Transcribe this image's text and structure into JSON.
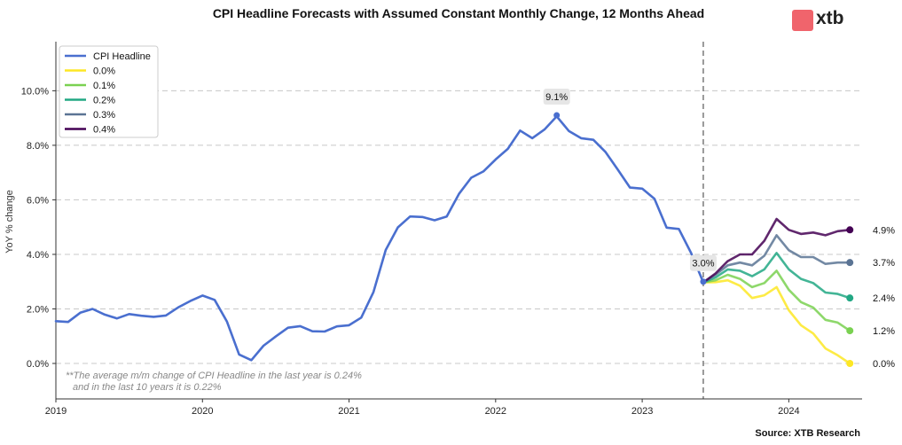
{
  "brand": {
    "logo_text": "xtb",
    "logo_color": "#f0646c"
  },
  "source": "Source: XTB Research",
  "note_lines": [
    "**The average m/m change of CPI Headline in the last year is 0.24%",
    "and in the last 10 years it is 0.22%"
  ],
  "chart_data": {
    "type": "line",
    "title": "CPI Headline Forecasts with Assumed Constant Monthly Change, 12 Months Ahead",
    "xlabel": "",
    "ylabel": "YoY % change",
    "x_range": [
      "2019-01",
      "2024-07"
    ],
    "ylim": [
      -1.3,
      11.8
    ],
    "y_ticks": [
      0,
      2,
      4,
      6,
      8,
      10
    ],
    "y_tick_labels": [
      "0.0%",
      "2.0%",
      "4.0%",
      "6.0%",
      "8.0%",
      "10.0%"
    ],
    "x_ticks": [
      "2019-01",
      "2020-01",
      "2021-01",
      "2022-01",
      "2023-01",
      "2024-01"
    ],
    "x_tick_labels": [
      "2019",
      "2020",
      "2021",
      "2022",
      "2023",
      "2024"
    ],
    "grid": "horizontal dashed",
    "legend_position": "top-left",
    "vline_at": "2023-06",
    "annotations": [
      {
        "x": "2022-06",
        "y": 9.1,
        "label": "9.1%"
      },
      {
        "x": "2023-06",
        "y": 3.0,
        "label": "3.0%"
      }
    ],
    "series": [
      {
        "name": "CPI Headline",
        "color": "#4a6fcf",
        "start": "2019-01",
        "values": [
          1.55,
          1.52,
          1.86,
          2.0,
          1.79,
          1.65,
          1.81,
          1.75,
          1.71,
          1.76,
          2.05,
          2.29,
          2.49,
          2.33,
          1.54,
          0.33,
          0.12,
          0.65,
          0.99,
          1.31,
          1.37,
          1.18,
          1.17,
          1.36,
          1.4,
          1.68,
          2.62,
          4.16,
          4.99,
          5.39,
          5.37,
          5.25,
          5.39,
          6.22,
          6.81,
          7.04,
          7.48,
          7.87,
          8.54,
          8.26,
          8.58,
          9.06,
          8.52,
          8.26,
          8.2,
          7.75,
          7.11,
          6.45,
          6.41,
          6.04,
          4.98,
          4.93,
          4.05,
          2.97
        ]
      },
      {
        "name": "0.0%",
        "color": "#fde725",
        "end_label": "0.0%",
        "start": "2023-06",
        "values": [
          2.97,
          2.98,
          3.05,
          2.85,
          2.4,
          2.5,
          2.8,
          1.95,
          1.4,
          1.1,
          0.55,
          0.3,
          0.0
        ]
      },
      {
        "name": "0.1%",
        "color": "#7ad151",
        "end_label": "1.2%",
        "start": "2023-06",
        "values": [
          2.97,
          3.05,
          3.25,
          3.1,
          2.8,
          2.95,
          3.4,
          2.7,
          2.25,
          2.05,
          1.6,
          1.5,
          1.2
        ]
      },
      {
        "name": "0.2%",
        "color": "#22a884",
        "end_label": "2.4%",
        "start": "2023-06",
        "values": [
          2.97,
          3.15,
          3.45,
          3.4,
          3.2,
          3.45,
          4.05,
          3.45,
          3.1,
          2.95,
          2.6,
          2.55,
          2.4
        ]
      },
      {
        "name": "0.3%",
        "color": "#5b7494",
        "end_label": "3.7%",
        "start": "2023-06",
        "values": [
          2.97,
          3.25,
          3.6,
          3.7,
          3.6,
          3.95,
          4.7,
          4.15,
          3.9,
          3.9,
          3.65,
          3.7,
          3.7
        ]
      },
      {
        "name": "0.4%",
        "color": "#440154",
        "end_label": "4.9%",
        "start": "2023-06",
        "values": [
          2.97,
          3.3,
          3.75,
          4.0,
          4.0,
          4.5,
          5.3,
          4.9,
          4.75,
          4.8,
          4.7,
          4.85,
          4.9
        ]
      }
    ]
  }
}
